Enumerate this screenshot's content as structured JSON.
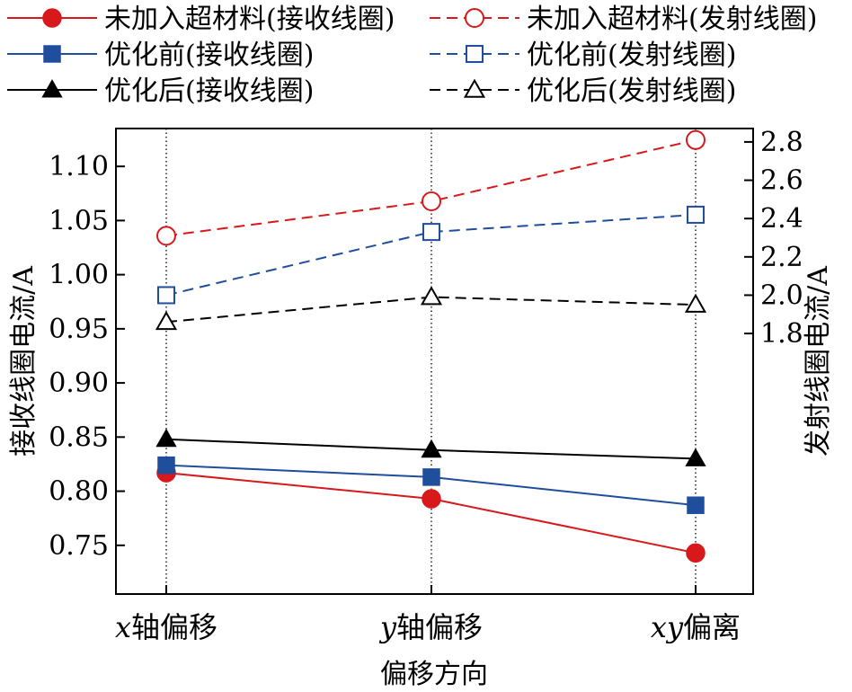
{
  "chart_data": {
    "type": "line",
    "categories": [
      {
        "var": "x",
        "text": "轴偏移"
      },
      {
        "var": "y",
        "text": "轴偏移"
      },
      {
        "var": "xy",
        "text": "偏离"
      }
    ],
    "xlabel": "偏移方向",
    "ylabel_left": "接收线圈电流/A",
    "ylabel_right": "发射线圈电流/A",
    "ylim_left": [
      0.705,
      1.135
    ],
    "ylim_right": [
      0.44,
      2.87
    ],
    "yticks_left": [
      "0.75",
      "0.80",
      "0.85",
      "0.90",
      "0.95",
      "1.00",
      "1.05",
      "1.10"
    ],
    "yticks_right": [
      "1.8",
      "2.0",
      "2.2",
      "2.4",
      "2.6",
      "2.8"
    ],
    "vertical_gridlines": "dotted",
    "legend_position": "top",
    "series": [
      {
        "name": "未加入超材料(接收线圈)",
        "axis": "left",
        "color": "#d7191c",
        "marker": "circle",
        "filled": true,
        "dash": false,
        "values": [
          0.817,
          0.793,
          0.743
        ]
      },
      {
        "name": "未加入超材料(发射线圈)",
        "axis": "right",
        "color": "#d7191c",
        "marker": "circle",
        "filled": false,
        "dash": true,
        "values": [
          2.31,
          2.49,
          2.81
        ]
      },
      {
        "name": "优化前(接收线圈)",
        "axis": "left",
        "color": "#1f4e9c",
        "marker": "square",
        "filled": true,
        "dash": false,
        "values": [
          0.824,
          0.813,
          0.787
        ]
      },
      {
        "name": "优化前(发射线圈)",
        "axis": "right",
        "color": "#1f4e9c",
        "marker": "square",
        "filled": false,
        "dash": true,
        "values": [
          2.0,
          2.33,
          2.42
        ]
      },
      {
        "name": "优化后(接收线圈)",
        "axis": "left",
        "color": "#000000",
        "marker": "triangle",
        "filled": true,
        "dash": false,
        "values": [
          0.848,
          0.838,
          0.83
        ]
      },
      {
        "name": "优化后(发射线圈)",
        "axis": "right",
        "color": "#000000",
        "marker": "triangle",
        "filled": false,
        "dash": true,
        "values": [
          1.86,
          1.99,
          1.95
        ]
      }
    ]
  }
}
